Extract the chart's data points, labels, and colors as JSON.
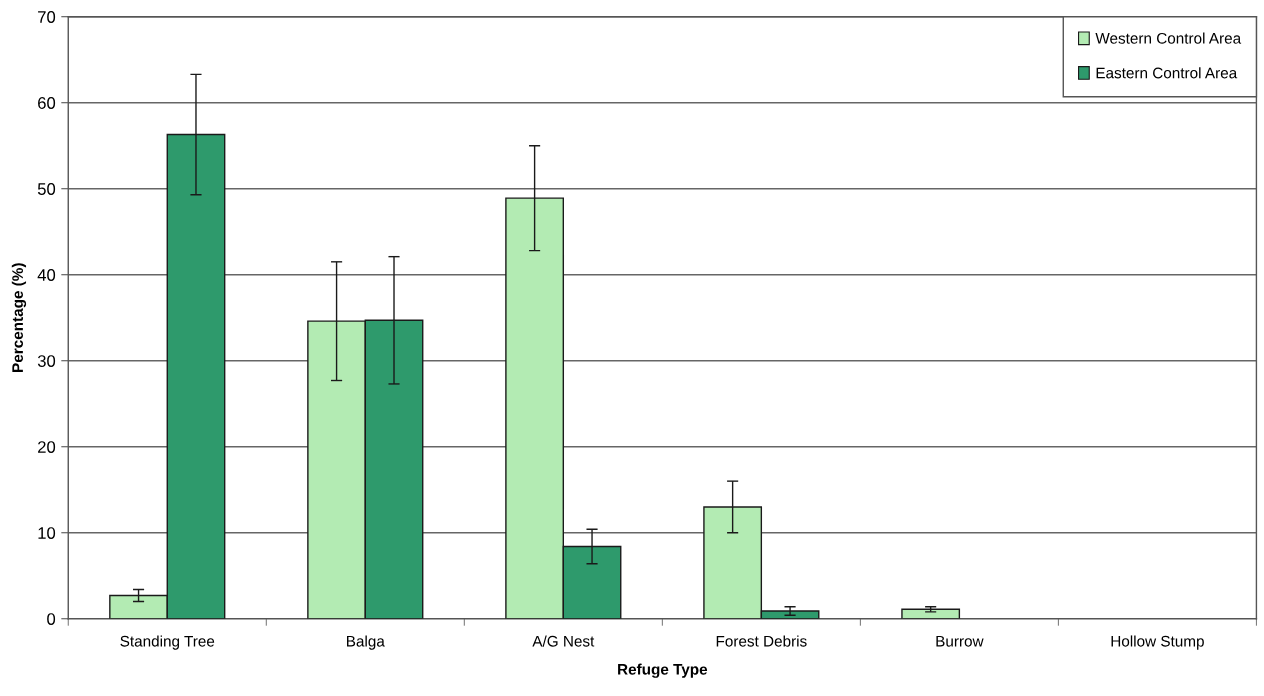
{
  "chart_data": {
    "type": "bar",
    "xlabel": "Refuge Type",
    "ylabel": "Percentage (%)",
    "categories": [
      "Standing Tree",
      "Balga",
      "A/G Nest",
      "Forest Debris",
      "Burrow",
      "Hollow Stump"
    ],
    "series": [
      {
        "name": "Western Control Area",
        "color": "#b3ebb3",
        "values": [
          2.7,
          34.6,
          48.9,
          13.0,
          1.1,
          null
        ],
        "errors": [
          0.7,
          6.9,
          6.1,
          3.0,
          0.3,
          null
        ]
      },
      {
        "name": "Eastern Control Area",
        "color": "#2e9a6c",
        "values": [
          56.3,
          34.7,
          8.4,
          0.9,
          null,
          null
        ],
        "errors": [
          7.0,
          7.4,
          2.0,
          0.5,
          null,
          null
        ]
      }
    ],
    "ylim": [
      0,
      70
    ],
    "yticks": [
      0,
      10,
      20,
      30,
      40,
      50,
      60,
      70
    ],
    "grid": "y",
    "legend": "top right"
  }
}
